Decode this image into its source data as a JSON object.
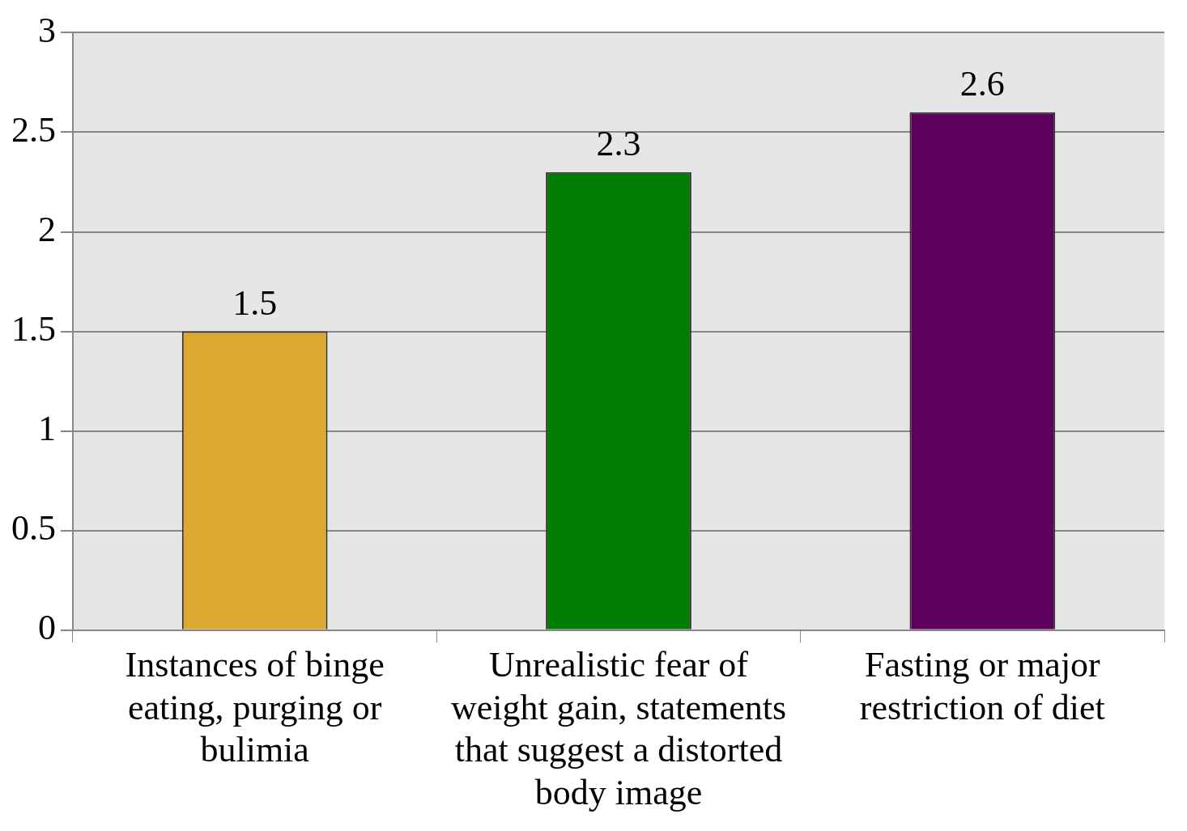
{
  "chart_data": {
    "type": "bar",
    "categories": [
      "Instances of binge eating, purging or bulimia",
      "Unrealistic fear of weight gain, statements that suggest a distorted body image",
      "Fasting or major restriction of diet"
    ],
    "values": [
      1.5,
      2.3,
      2.6
    ],
    "colors": [
      "#dca832",
      "#007c00",
      "#5e005c"
    ],
    "ylim": [
      0,
      3
    ],
    "yticks": [
      0,
      0.5,
      1,
      1.5,
      2,
      2.5,
      3
    ],
    "grid": "y",
    "data_labels": true,
    "legend": false
  }
}
